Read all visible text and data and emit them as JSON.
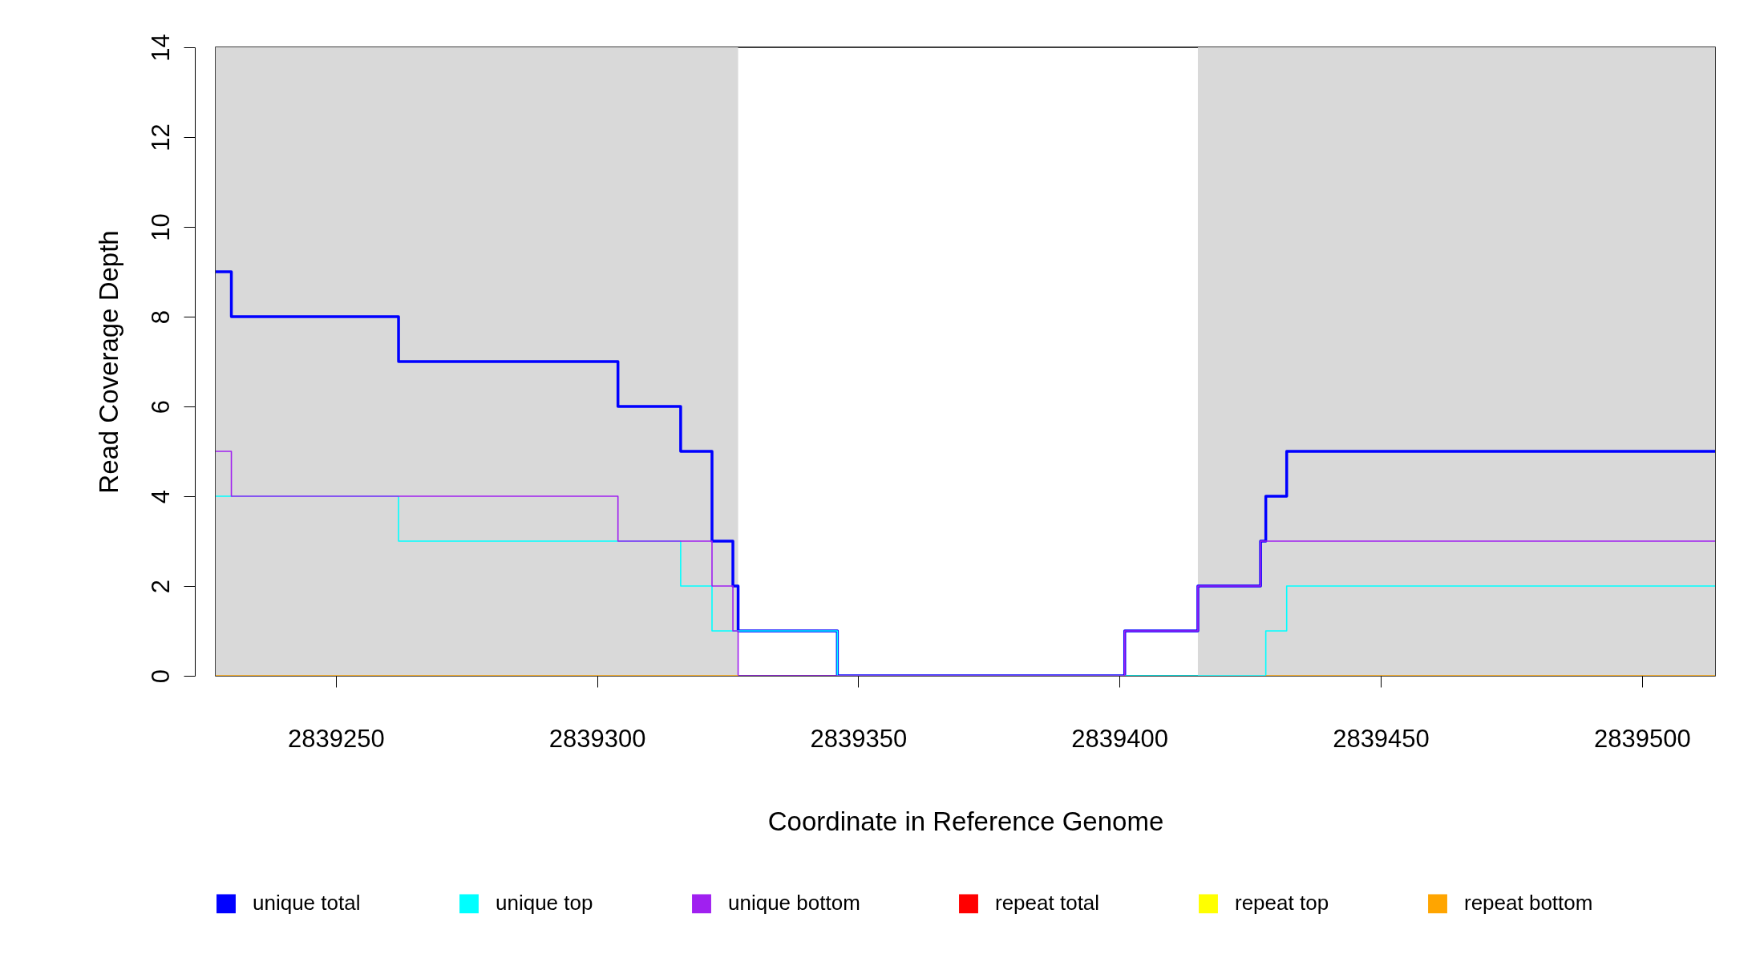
{
  "chart_data": {
    "type": "step",
    "xlabel": "Coordinate in Reference Genome",
    "ylabel": "Read Coverage Depth",
    "x": [
      2839227,
      2839230,
      2839262,
      2839304,
      2839316,
      2839322,
      2839326,
      2839327,
      2839346,
      2839401,
      2839415,
      2839427,
      2839428,
      2839432,
      2839514
    ],
    "series": [
      {
        "name": "unique total",
        "color": "#0000ff",
        "values": [
          9,
          8,
          7,
          6,
          5,
          3,
          2,
          1,
          0,
          1,
          2,
          3,
          4,
          5,
          5
        ]
      },
      {
        "name": "unique top",
        "color": "#00ffff",
        "values": [
          4,
          4,
          3,
          3,
          2,
          1,
          1,
          1,
          0,
          0,
          0,
          0,
          1,
          2,
          2
        ]
      },
      {
        "name": "unique bottom",
        "color": "#a020f0",
        "values": [
          5,
          4,
          4,
          3,
          3,
          2,
          1,
          0,
          0,
          1,
          2,
          3,
          3,
          3,
          3
        ]
      },
      {
        "name": "repeat total",
        "color": "#ff0000",
        "values": [
          null,
          null,
          null,
          null,
          null,
          null,
          null,
          null,
          null,
          null,
          null,
          null,
          null,
          null,
          null
        ]
      },
      {
        "name": "repeat top",
        "color": "#ffff00",
        "values": [
          null,
          null,
          null,
          null,
          null,
          null,
          null,
          null,
          null,
          null,
          null,
          null,
          null,
          null,
          null
        ]
      },
      {
        "name": "repeat bottom",
        "color": "#ffa500",
        "values": [
          0,
          0,
          0,
          0,
          0,
          0,
          0,
          0,
          null,
          null,
          null,
          null,
          0,
          0,
          0
        ]
      }
    ],
    "xlim": [
      2839227,
      2839514
    ],
    "xticks": [
      2839250,
      2839300,
      2839350,
      2839400,
      2839450,
      2839500
    ],
    "ylim": [
      0,
      14
    ],
    "yticks": [
      0,
      2,
      4,
      6,
      8,
      10,
      12,
      14
    ],
    "bands": [
      {
        "axis": "x",
        "from": 2839227,
        "to": 2839327,
        "color": "#d9d9d9"
      },
      {
        "axis": "x",
        "from": 2839415,
        "to": 2839514,
        "color": "#d9d9d9"
      }
    ],
    "legend": "bottom",
    "grid": false
  }
}
